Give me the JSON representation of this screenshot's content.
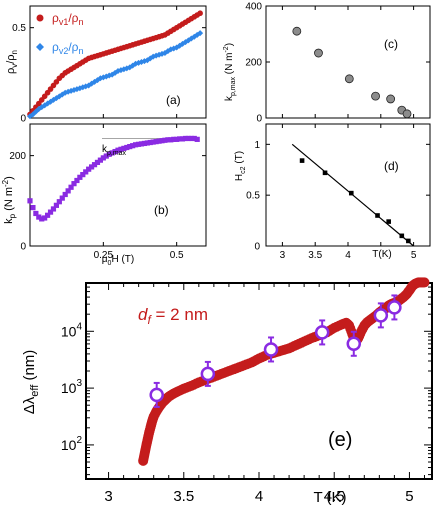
{
  "chart_data": [
    {
      "panel": "(a)",
      "type": "scatter",
      "ylabel_main": "ρ",
      "ylabel_sub1": "v",
      "ylabel_mid": "/ρ",
      "ylabel_sub2": "n",
      "xlim": [
        0,
        0.6
      ],
      "ylim": [
        0,
        0.62
      ],
      "ytick_labels": [
        "0",
        "0.5"
      ],
      "ytick_values": [
        0,
        0.5
      ],
      "xtick_values": [
        0,
        0.25,
        0.5
      ],
      "series": [
        {
          "name_main": "ρ",
          "name_sub1": "v1",
          "name_mid": "/ρ",
          "name_sub2": "n",
          "color": "#c41c1c",
          "x": [
            0.0,
            0.01,
            0.02,
            0.03,
            0.04,
            0.05,
            0.06,
            0.07,
            0.08,
            0.09,
            0.1,
            0.11,
            0.12,
            0.13,
            0.14,
            0.15,
            0.16,
            0.17,
            0.18,
            0.19,
            0.2,
            0.21,
            0.22,
            0.23,
            0.24,
            0.25,
            0.26,
            0.27,
            0.28,
            0.29,
            0.3,
            0.31,
            0.32,
            0.33,
            0.34,
            0.35,
            0.36,
            0.37,
            0.38,
            0.39,
            0.4,
            0.41,
            0.42,
            0.43,
            0.44,
            0.45,
            0.46,
            0.47,
            0.48,
            0.49,
            0.5,
            0.51,
            0.52,
            0.53,
            0.54,
            0.55,
            0.56,
            0.57,
            0.58
          ],
          "y": [
            0.02,
            0.04,
            0.06,
            0.08,
            0.1,
            0.12,
            0.14,
            0.16,
            0.18,
            0.2,
            0.22,
            0.235,
            0.25,
            0.26,
            0.27,
            0.28,
            0.29,
            0.3,
            0.31,
            0.32,
            0.33,
            0.335,
            0.34,
            0.345,
            0.35,
            0.355,
            0.36,
            0.365,
            0.37,
            0.375,
            0.38,
            0.385,
            0.39,
            0.395,
            0.4,
            0.405,
            0.41,
            0.415,
            0.42,
            0.425,
            0.43,
            0.435,
            0.44,
            0.445,
            0.45,
            0.455,
            0.46,
            0.47,
            0.48,
            0.49,
            0.5,
            0.51,
            0.52,
            0.53,
            0.54,
            0.55,
            0.56,
            0.57,
            0.58
          ]
        },
        {
          "name_main": "ρ",
          "name_sub1": "v2",
          "name_mid": "/ρ",
          "name_sub2": "n",
          "color": "#2f86e8",
          "x": [
            0.0,
            0.01,
            0.02,
            0.03,
            0.04,
            0.05,
            0.06,
            0.07,
            0.08,
            0.09,
            0.1,
            0.11,
            0.12,
            0.13,
            0.14,
            0.15,
            0.16,
            0.17,
            0.18,
            0.19,
            0.2,
            0.21,
            0.22,
            0.23,
            0.24,
            0.25,
            0.26,
            0.27,
            0.28,
            0.29,
            0.3,
            0.31,
            0.32,
            0.33,
            0.34,
            0.35,
            0.36,
            0.37,
            0.38,
            0.39,
            0.4,
            0.41,
            0.42,
            0.43,
            0.44,
            0.45,
            0.46,
            0.47,
            0.48,
            0.49,
            0.5,
            0.51,
            0.52,
            0.53,
            0.54,
            0.55,
            0.56,
            0.57,
            0.58
          ],
          "y": [
            0.01,
            0.02,
            0.035,
            0.05,
            0.06,
            0.07,
            0.08,
            0.09,
            0.1,
            0.11,
            0.12,
            0.13,
            0.14,
            0.145,
            0.15,
            0.155,
            0.16,
            0.165,
            0.17,
            0.175,
            0.18,
            0.19,
            0.2,
            0.21,
            0.22,
            0.225,
            0.23,
            0.235,
            0.24,
            0.25,
            0.26,
            0.265,
            0.27,
            0.275,
            0.28,
            0.29,
            0.3,
            0.305,
            0.31,
            0.315,
            0.32,
            0.33,
            0.34,
            0.345,
            0.35,
            0.355,
            0.36,
            0.37,
            0.38,
            0.385,
            0.39,
            0.4,
            0.41,
            0.42,
            0.43,
            0.44,
            0.45,
            0.46,
            0.47
          ]
        }
      ],
      "annotation": "(a)"
    },
    {
      "panel": "(b)",
      "type": "scatter",
      "ylabel_main": "k",
      "ylabel_sub": "p",
      "ylabel_unit_pre": " (N m",
      "ylabel_unit_sup": "-2",
      "ylabel_unit_post": ")",
      "xlabel_main": "μ",
      "xlabel_sub": "0",
      "xlabel_rest": "H (T)",
      "xlim": [
        0,
        0.6
      ],
      "ylim": [
        0,
        270
      ],
      "ytick_labels": [
        "0",
        "200"
      ],
      "ytick_values": [
        0,
        200
      ],
      "xtick_labels": [
        "0.25",
        "0.5"
      ],
      "xtick_values": [
        0.25,
        0.5
      ],
      "series": [
        {
          "name": "",
          "color": "#8a2be2",
          "x": [
            0.0,
            0.01,
            0.02,
            0.03,
            0.04,
            0.05,
            0.06,
            0.07,
            0.08,
            0.09,
            0.1,
            0.11,
            0.12,
            0.13,
            0.14,
            0.15,
            0.16,
            0.17,
            0.18,
            0.19,
            0.2,
            0.21,
            0.22,
            0.23,
            0.24,
            0.25,
            0.26,
            0.27,
            0.28,
            0.29,
            0.3,
            0.31,
            0.32,
            0.33,
            0.34,
            0.35,
            0.36,
            0.37,
            0.38,
            0.39,
            0.4,
            0.41,
            0.42,
            0.43,
            0.44,
            0.45,
            0.46,
            0.47,
            0.48,
            0.49,
            0.5,
            0.51,
            0.52,
            0.53,
            0.54,
            0.55,
            0.56,
            0.57
          ],
          "y": [
            100,
            85,
            72,
            64,
            60,
            62,
            68,
            75,
            82,
            90,
            98,
            106,
            114,
            122,
            130,
            138,
            145,
            152,
            158,
            164,
            170,
            175,
            180,
            185,
            190,
            195,
            199,
            203,
            206,
            209,
            212,
            214,
            216,
            218,
            220,
            222,
            224,
            225,
            226,
            227,
            228,
            229,
            230,
            231,
            232,
            233,
            234,
            235,
            235,
            236,
            236,
            237,
            237,
            238,
            238,
            238,
            238,
            236
          ]
        }
      ],
      "annotation": "(b)",
      "kpmax_label_main": "k",
      "kpmax_label_sub": "p,max",
      "kpmax_line_y": 238
    },
    {
      "panel": "(c)",
      "type": "scatter",
      "ylabel_main": "k",
      "ylabel_sub": "p,max",
      "ylabel_unit_pre": " (N m",
      "ylabel_unit_sup": "-2",
      "ylabel_unit_post": ")",
      "xlim": [
        2.75,
        5.25
      ],
      "ylim": [
        0,
        400
      ],
      "ytick_labels": [
        "0",
        "200",
        "400"
      ],
      "ytick_values": [
        0,
        200,
        400
      ],
      "xtick_values": [
        3,
        3.5,
        4,
        4.5,
        5
      ],
      "series": [
        {
          "name": "",
          "color": "#8c8c8c",
          "x": [
            3.22,
            3.55,
            4.02,
            4.42,
            4.65,
            4.82,
            4.9
          ],
          "y": [
            310,
            232,
            140,
            78,
            68,
            28,
            15
          ]
        }
      ],
      "annotation": "(c)"
    },
    {
      "panel": "(d)",
      "type": "scatter",
      "ylabel_main": "H",
      "ylabel_sub": "c2",
      "ylabel_unit": " (T)",
      "xlabel": "T(K)",
      "xlim": [
        2.75,
        5.25
      ],
      "ylim": [
        0,
        1.2
      ],
      "ytick_labels": [
        "0",
        "0.5",
        "1"
      ],
      "ytick_values": [
        0,
        0.5,
        1
      ],
      "xtick_labels": [
        "3",
        "3.5",
        "4",
        "5"
      ],
      "xtick_values": [
        3,
        3.5,
        4,
        5
      ],
      "series": [
        {
          "name": "",
          "color": "#000000",
          "x": [
            3.3,
            3.65,
            4.05,
            4.45,
            4.62,
            4.82,
            4.92
          ],
          "y": [
            0.84,
            0.72,
            0.52,
            0.3,
            0.24,
            0.1,
            0.05
          ]
        }
      ],
      "fit_line": {
        "x": [
          3.15,
          5.0
        ],
        "y": [
          1.0,
          0.0
        ]
      },
      "annotation": "(d)"
    },
    {
      "panel": "(e)",
      "type": "scatter",
      "ylabel_main": "Δλ",
      "ylabel_sub": "eff",
      "ylabel_unit": " (nm)",
      "xlabel": "T (K)",
      "yscale": "log",
      "xlim": [
        2.85,
        5.15
      ],
      "ylim_exp": [
        1.4,
        4.85
      ],
      "ytick_base": "10",
      "ytick_exps": [
        "2",
        "3",
        "4"
      ],
      "ytick_exp_values": [
        2,
        3,
        4
      ],
      "xtick_labels": [
        "3",
        "3.5",
        "4",
        "4.5",
        "5"
      ],
      "xtick_values": [
        3,
        3.5,
        4,
        4.5,
        5
      ],
      "annotation_prefix": "d",
      "annotation_sub": "f",
      "annotation_rest": " = 2 nm",
      "panel_label": "(e)",
      "series": [
        {
          "name": "",
          "color": "#c41c1c",
          "x": [
            3.23,
            3.24,
            3.25,
            3.26,
            3.27,
            3.28,
            3.29,
            3.3,
            3.32,
            3.34,
            3.36,
            3.38,
            3.4,
            3.43,
            3.46,
            3.5,
            3.55,
            3.6,
            3.65,
            3.7,
            3.75,
            3.8,
            3.85,
            3.9,
            3.95,
            4.0,
            4.05,
            4.1,
            4.15,
            4.2,
            4.25,
            4.3,
            4.35,
            4.4,
            4.45,
            4.5,
            4.55,
            4.58,
            4.6,
            4.62,
            4.64,
            4.66,
            4.68,
            4.7,
            4.72,
            4.74,
            4.76,
            4.78,
            4.8,
            4.82,
            4.84,
            4.86,
            4.88,
            4.9,
            4.92,
            4.94,
            4.96,
            4.98,
            5.0,
            5.02,
            5.04,
            5.06,
            5.08,
            5.1
          ],
          "y_log": [
            1.72,
            1.85,
            1.98,
            2.1,
            2.22,
            2.32,
            2.42,
            2.5,
            2.6,
            2.68,
            2.75,
            2.8,
            2.85,
            2.9,
            2.94,
            2.99,
            3.04,
            3.1,
            3.15,
            3.2,
            3.25,
            3.3,
            3.35,
            3.4,
            3.45,
            3.52,
            3.58,
            3.62,
            3.66,
            3.7,
            3.76,
            3.82,
            3.88,
            3.93,
            3.98,
            4.06,
            4.12,
            4.15,
            4.1,
            3.95,
            3.8,
            3.88,
            4.0,
            4.1,
            4.16,
            4.2,
            4.24,
            4.28,
            4.33,
            4.37,
            4.4,
            4.45,
            4.48,
            4.5,
            4.52,
            4.56,
            4.6,
            4.65,
            4.72,
            4.8,
            4.84,
            4.86,
            4.86,
            4.86
          ]
        },
        {
          "name": "",
          "color": "#8a2be2",
          "x": [
            3.32,
            3.66,
            4.08,
            4.42,
            4.63,
            4.81,
            4.9
          ],
          "y_log": [
            2.88,
            3.25,
            3.68,
            3.98,
            3.78,
            4.28,
            4.42
          ]
        }
      ]
    }
  ]
}
